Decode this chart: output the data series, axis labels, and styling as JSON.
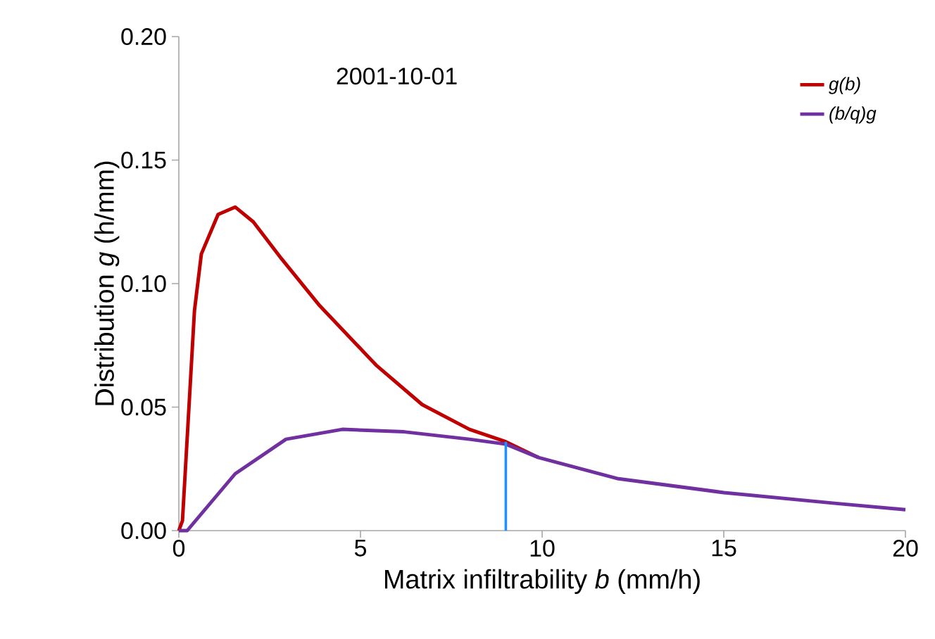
{
  "chart_data": {
    "type": "line",
    "title": "2001-10-01",
    "xlabel": "Matrix infiltrability *b* (mm/h)",
    "ylabel": "Distribution *g* (h/mm)",
    "xlim": [
      0,
      20
    ],
    "ylim": [
      0,
      0.2
    ],
    "xticks": [
      0,
      5,
      10,
      15,
      20
    ],
    "yticks": [
      {
        "value": 0,
        "label": "0.00"
      },
      {
        "value": 0.05,
        "label": "0.05"
      },
      {
        "value": 0.1,
        "label": "0.10"
      },
      {
        "value": 0.15,
        "label": "0.15"
      },
      {
        "value": 0.2,
        "label": "0.20"
      }
    ],
    "grid": false,
    "legend": "top right",
    "marker": "none",
    "line_style": "solid",
    "series": [
      {
        "name": "g(b)",
        "color": "#c00000",
        "x": [
          0,
          0.1,
          0.43,
          0.62,
          1.08,
          1.55,
          2.05,
          2.83,
          3.88,
          5.43,
          6.7,
          8,
          9,
          9.9
        ],
        "values": [
          0,
          0.004,
          0.089,
          0.112,
          0.128,
          0.131,
          0.125,
          0.11,
          0.091,
          0.067,
          0.051,
          0.041,
          0.036,
          0.0296
        ]
      },
      {
        "name": "(b/q)g",
        "color": "#7030a0",
        "x": [
          0,
          0.23,
          1.55,
          2.95,
          4.5,
          6.2,
          8,
          9,
          9.9,
          12.1,
          15,
          18.1,
          20
        ],
        "values": [
          0,
          0,
          0.023,
          0.037,
          0.041,
          0.04,
          0.037,
          0.035,
          0.0296,
          0.021,
          0.0154,
          0.011,
          0.0085
        ]
      }
    ],
    "ref_lines": [
      {
        "axis": "x",
        "value": 9,
        "color": "#1e90ff"
      }
    ]
  }
}
